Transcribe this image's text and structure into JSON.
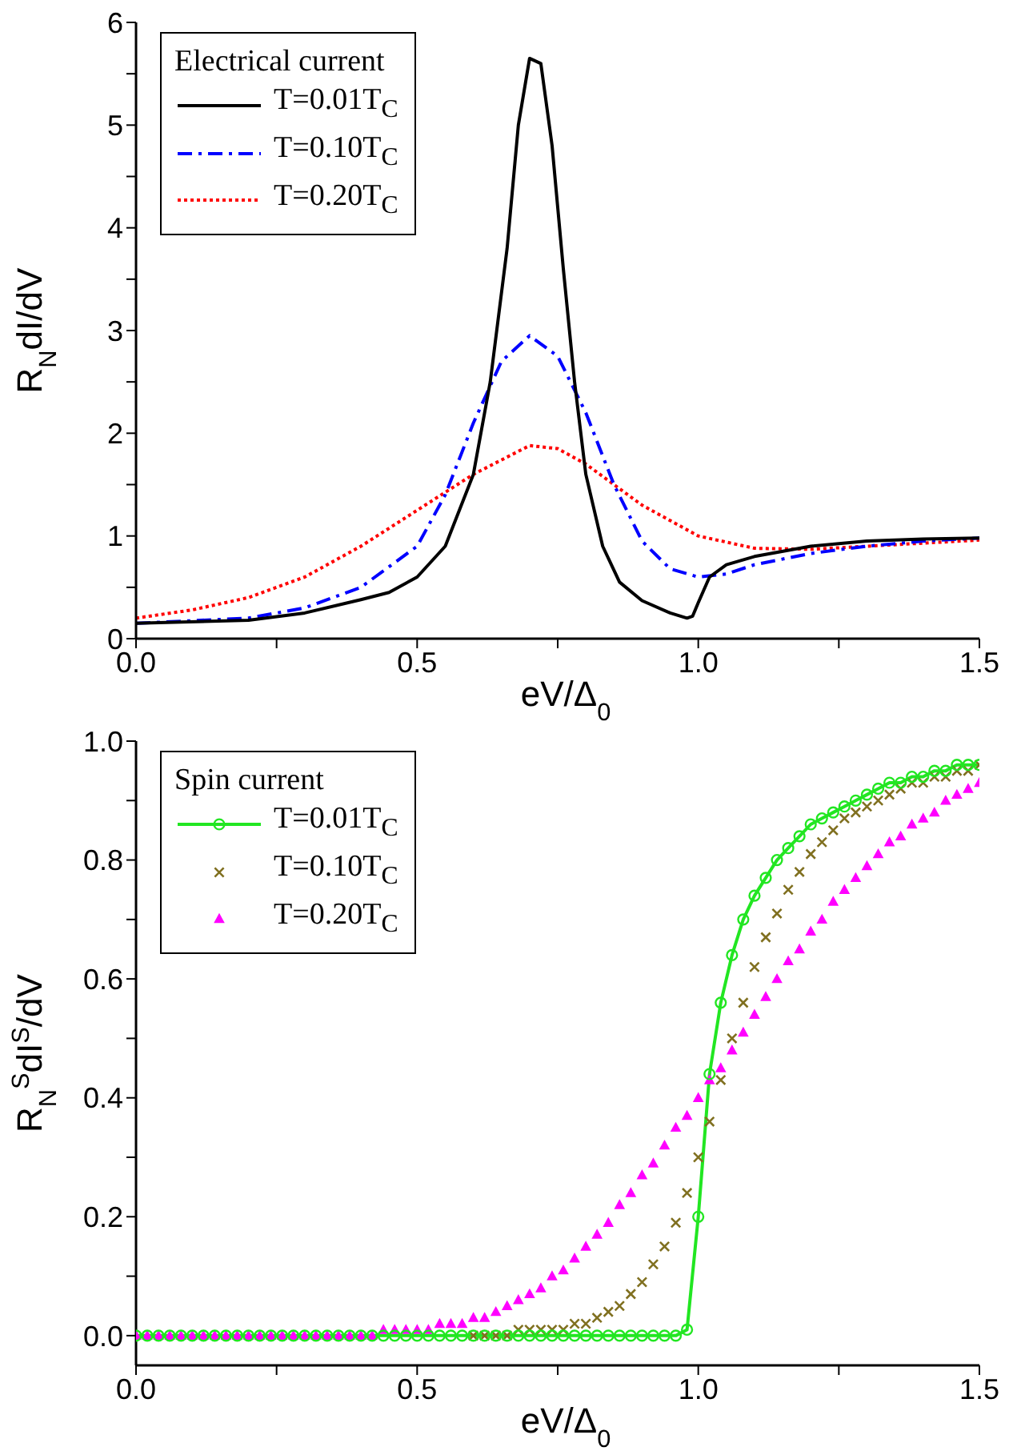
{
  "chart_data": [
    {
      "type": "line",
      "xlabel": "eV/Δ$_{0}$",
      "ylabel": "R$_{N}$dI/dV",
      "legend_title": "Electrical current",
      "legend": "top left",
      "xlim": [
        0,
        1.5
      ],
      "ylim": [
        0,
        6
      ],
      "xticks": [
        {
          "value": 0,
          "label": "0.0"
        },
        {
          "value": 0.25,
          "label": null
        },
        {
          "value": 0.5,
          "label": "0.5"
        },
        {
          "value": 0.75,
          "label": null
        },
        {
          "value": 1,
          "label": "1.0"
        },
        {
          "value": 1.25,
          "label": null
        },
        {
          "value": 1.5,
          "label": "1.5"
        }
      ],
      "yticks": [
        0,
        {
          "value": 0.5,
          "label": null
        },
        1,
        {
          "value": 1.5,
          "label": null
        },
        2,
        {
          "value": 2.5,
          "label": null
        },
        3,
        {
          "value": 3.5,
          "label": null
        },
        4,
        {
          "value": 4.5,
          "label": null
        },
        5,
        {
          "value": 5.5,
          "label": null
        },
        6
      ],
      "series": [
        {
          "name": "T=0.01T$_{C}$",
          "color": "#000000",
          "line_style": "solid",
          "x": [
            0,
            0.2,
            0.3,
            0.4,
            0.45,
            0.5,
            0.55,
            0.6,
            0.63,
            0.66,
            0.68,
            0.7,
            0.72,
            0.74,
            0.76,
            0.78,
            0.8,
            0.83,
            0.86,
            0.9,
            0.95,
            0.98,
            0.99,
            1.0,
            1.02,
            1.05,
            1.1,
            1.2,
            1.3,
            1.4,
            1.5
          ],
          "values": [
            0.15,
            0.18,
            0.25,
            0.38,
            0.45,
            0.6,
            0.9,
            1.6,
            2.5,
            3.8,
            5.0,
            5.65,
            5.6,
            4.8,
            3.6,
            2.5,
            1.6,
            0.9,
            0.55,
            0.37,
            0.25,
            0.2,
            0.22,
            0.35,
            0.6,
            0.72,
            0.8,
            0.9,
            0.95,
            0.97,
            0.98
          ]
        },
        {
          "name": "T=0.10T$_{C}$",
          "color": "#0000ff",
          "line_style": "dashed",
          "x": [
            0,
            0.2,
            0.3,
            0.4,
            0.5,
            0.55,
            0.6,
            0.65,
            0.7,
            0.75,
            0.8,
            0.85,
            0.9,
            0.95,
            1.0,
            1.05,
            1.1,
            1.2,
            1.3,
            1.4,
            1.5
          ],
          "values": [
            0.15,
            0.2,
            0.3,
            0.5,
            0.9,
            1.4,
            2.1,
            2.7,
            2.95,
            2.75,
            2.2,
            1.5,
            0.95,
            0.68,
            0.6,
            0.63,
            0.72,
            0.83,
            0.9,
            0.95,
            0.98
          ]
        },
        {
          "name": "T=0.20T$_{C}$",
          "color": "#ff0000",
          "line_style": "dotted",
          "x": [
            0,
            0.1,
            0.2,
            0.3,
            0.4,
            0.5,
            0.6,
            0.7,
            0.75,
            0.8,
            0.9,
            1.0,
            1.1,
            1.2,
            1.3,
            1.4,
            1.5
          ],
          "values": [
            0.2,
            0.28,
            0.4,
            0.6,
            0.9,
            1.25,
            1.6,
            1.88,
            1.85,
            1.7,
            1.3,
            1.0,
            0.88,
            0.87,
            0.9,
            0.93,
            0.96
          ]
        }
      ]
    },
    {
      "type": "line",
      "xlabel": "eV/Δ$_{0}$",
      "ylabel": "R$_{N}$$^{S}$dI$^{S}$/dV",
      "legend_title": "Spin current",
      "legend": "top left",
      "xlim": [
        0,
        1.5
      ],
      "ylim": [
        -0.05,
        1.0
      ],
      "xticks": [
        {
          "value": 0,
          "label": "0.0"
        },
        {
          "value": 0.25,
          "label": null
        },
        {
          "value": 0.5,
          "label": "0.5"
        },
        {
          "value": 0.75,
          "label": null
        },
        {
          "value": 1,
          "label": "1.0"
        },
        {
          "value": 1.25,
          "label": null
        },
        {
          "value": 1.5,
          "label": "1.5"
        }
      ],
      "yticks": [
        {
          "value": 0,
          "label": "0.0"
        },
        {
          "value": 0.1,
          "label": null
        },
        {
          "value": 0.2,
          "label": "0.2"
        },
        {
          "value": 0.3,
          "label": null
        },
        {
          "value": 0.4,
          "label": "0.4"
        },
        {
          "value": 0.5,
          "label": null
        },
        {
          "value": 0.6,
          "label": "0.6"
        },
        {
          "value": 0.7,
          "label": null
        },
        {
          "value": 0.8,
          "label": "0.8"
        },
        {
          "value": 0.9,
          "label": null
        },
        {
          "value": 1,
          "label": "1.0"
        }
      ],
      "x": [
        0,
        0.02,
        0.04,
        0.06,
        0.08,
        0.1,
        0.12,
        0.14,
        0.16,
        0.18,
        0.2,
        0.22,
        0.24,
        0.26,
        0.28,
        0.3,
        0.32,
        0.34,
        0.36,
        0.38,
        0.4,
        0.42,
        0.44,
        0.46,
        0.48,
        0.5,
        0.52,
        0.54,
        0.56,
        0.58,
        0.6,
        0.62,
        0.64,
        0.66,
        0.68,
        0.7,
        0.72,
        0.74,
        0.76,
        0.78,
        0.8,
        0.82,
        0.84,
        0.86,
        0.88,
        0.9,
        0.92,
        0.94,
        0.96,
        0.98,
        1.0,
        1.02,
        1.04,
        1.06,
        1.08,
        1.1,
        1.12,
        1.14,
        1.16,
        1.18,
        1.2,
        1.22,
        1.24,
        1.26,
        1.28,
        1.3,
        1.32,
        1.34,
        1.36,
        1.38,
        1.4,
        1.42,
        1.44,
        1.46,
        1.48,
        1.5
      ],
      "series": [
        {
          "name": "T=0.01T$_{C}$",
          "type": "line",
          "marker": "circle",
          "color": "#22e622",
          "values": [
            0,
            0,
            0,
            0,
            0,
            0,
            0,
            0,
            0,
            0,
            0,
            0,
            0,
            0,
            0,
            0,
            0,
            0,
            0,
            0,
            0,
            0,
            0,
            0,
            0,
            0,
            0,
            0,
            0,
            0,
            0,
            0,
            0,
            0,
            0,
            0,
            0,
            0,
            0,
            0,
            0,
            0,
            0,
            0,
            0,
            0,
            0,
            0,
            0,
            0.01,
            0.2,
            0.44,
            0.56,
            0.64,
            0.7,
            0.74,
            0.77,
            0.8,
            0.82,
            0.84,
            0.86,
            0.87,
            0.88,
            0.89,
            0.9,
            0.91,
            0.92,
            0.93,
            0.93,
            0.94,
            0.94,
            0.95,
            0.95,
            0.96,
            0.96,
            0.96
          ]
        },
        {
          "name": "T=0.10T$_{C}$",
          "type": "scatter",
          "marker": "cross",
          "color": "#807020",
          "values": [
            null,
            null,
            null,
            null,
            null,
            null,
            null,
            null,
            null,
            null,
            null,
            null,
            null,
            null,
            null,
            null,
            null,
            null,
            null,
            null,
            null,
            null,
            null,
            null,
            null,
            null,
            null,
            null,
            null,
            null,
            0,
            0,
            0,
            0,
            0.01,
            0.01,
            0.01,
            0.01,
            0.01,
            0.02,
            0.02,
            0.03,
            0.04,
            0.05,
            0.07,
            0.09,
            0.12,
            0.15,
            0.19,
            0.24,
            0.3,
            0.36,
            0.43,
            0.5,
            0.56,
            0.62,
            0.67,
            0.71,
            0.75,
            0.78,
            0.81,
            0.83,
            0.85,
            0.87,
            0.88,
            0.89,
            0.9,
            0.91,
            0.92,
            0.93,
            0.93,
            0.94,
            0.94,
            0.95,
            0.95,
            0.96
          ]
        },
        {
          "name": "T=0.20T$_{C}$",
          "type": "scatter",
          "marker": "triangle",
          "color": "#ff00ff",
          "values": [
            0,
            0,
            0,
            0,
            0,
            0,
            0,
            0,
            0,
            0,
            0,
            0,
            0,
            0,
            0,
            0,
            0,
            0,
            0,
            0,
            0,
            0,
            0.01,
            0.01,
            0.01,
            0.01,
            0.01,
            0.02,
            0.02,
            0.02,
            0.03,
            0.03,
            0.04,
            0.05,
            0.06,
            0.07,
            0.08,
            0.1,
            0.11,
            0.13,
            0.15,
            0.17,
            0.19,
            0.22,
            0.24,
            0.27,
            0.29,
            0.32,
            0.35,
            0.37,
            0.4,
            0.43,
            0.45,
            0.48,
            0.51,
            0.54,
            0.57,
            0.6,
            0.63,
            0.65,
            0.68,
            0.7,
            0.73,
            0.75,
            0.77,
            0.79,
            0.81,
            0.83,
            0.84,
            0.86,
            0.87,
            0.88,
            0.9,
            0.91,
            0.92,
            0.93
          ]
        }
      ]
    }
  ]
}
